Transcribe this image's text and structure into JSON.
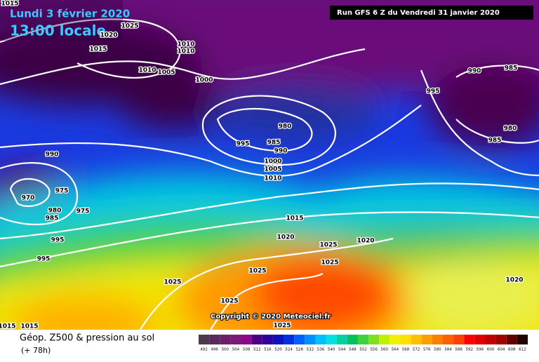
{
  "header": {
    "date": "Lundi 3 février 2020",
    "time": "13:00 locale",
    "run": "Run GFS 6 Z du Vendredi 31 janvier 2020"
  },
  "copyright": "Copyright © 2020 Meteociel.fr",
  "isobar_labels": [
    "1015",
    "1025",
    "1020",
    "1015",
    "1010",
    "1010",
    "1010",
    "1005",
    "1000",
    "980",
    "995",
    "985",
    "990",
    "1000",
    "1005",
    "1010",
    "990",
    "985",
    "995",
    "980",
    "985",
    "990",
    "970",
    "975",
    "980",
    "985",
    "975",
    "995",
    "995",
    "1015",
    "1020",
    "1025",
    "1020",
    "1025",
    "1025",
    "1025",
    "1020",
    "1025",
    "1025",
    "1015",
    "1015"
  ],
  "legend": {
    "title": "Géop. Z500 & pression au sol",
    "lead": "(+ 78h)",
    "ticks": [
      492,
      496,
      500,
      504,
      508,
      512,
      516,
      520,
      524,
      528,
      532,
      536,
      540,
      544,
      548,
      552,
      556,
      560,
      564,
      568,
      572,
      576,
      580,
      584,
      588,
      592,
      596,
      600,
      604,
      608,
      612
    ],
    "colors": [
      "#4d3a4d",
      "#5a2a5a",
      "#6b1f6b",
      "#7a1a7a",
      "#8a0a8a",
      "#4b0082",
      "#30009a",
      "#1010c0",
      "#0030e0",
      "#0060ff",
      "#0090ff",
      "#00c0ff",
      "#00e0e0",
      "#00d0a0",
      "#00c060",
      "#40d040",
      "#80e020",
      "#c0f000",
      "#f0f000",
      "#ffe000",
      "#ffc000",
      "#ffa000",
      "#ff8000",
      "#ff6000",
      "#ff4000",
      "#ff0000",
      "#e00000",
      "#c00000",
      "#a00000",
      "#600000",
      "#200000"
    ]
  }
}
